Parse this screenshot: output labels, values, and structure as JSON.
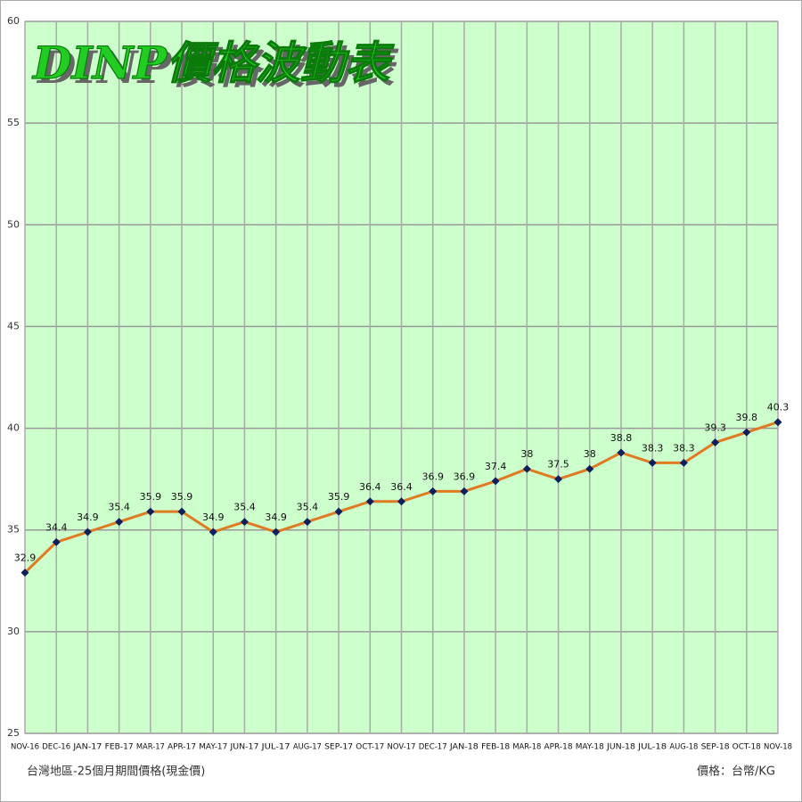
{
  "chart_data": {
    "type": "line",
    "title": "DINP價格波動表",
    "annotations": [
      "台灣地區-25個月期間價格(現金價)",
      "價格：台幣/KG"
    ],
    "categories": [
      "NOV-16",
      "DEC-16",
      "JAN-17",
      "FEB-17",
      "MAR-17",
      "APR-17",
      "MAY-17",
      "JUN-17",
      "JUL-17",
      "AUG-17",
      "SEP-17",
      "OCT-17",
      "NOV-17",
      "DEC-17",
      "JAN-18",
      "FEB-18",
      "MAR-18",
      "APR-18",
      "MAY-18",
      "JUN-18",
      "JUL-18",
      "AUG-18",
      "SEP-18",
      "OCT-18",
      "NOV-18"
    ],
    "series": [
      {
        "name": "DINP",
        "color": "#e07a22",
        "marker_color": "#0d1f5c",
        "values": [
          32.9,
          34.4,
          34.9,
          35.4,
          35.9,
          35.9,
          34.9,
          35.4,
          34.9,
          35.4,
          35.9,
          36.4,
          36.4,
          36.9,
          36.9,
          37.4,
          38,
          37.5,
          38,
          38.8,
          38.3,
          38.3,
          39.3,
          39.8,
          40.3
        ]
      }
    ],
    "ylim": [
      25,
      60
    ],
    "yticks": [
      25,
      30,
      35,
      40,
      45,
      50,
      55,
      60
    ],
    "grid": true,
    "background": "#ccffcc"
  }
}
